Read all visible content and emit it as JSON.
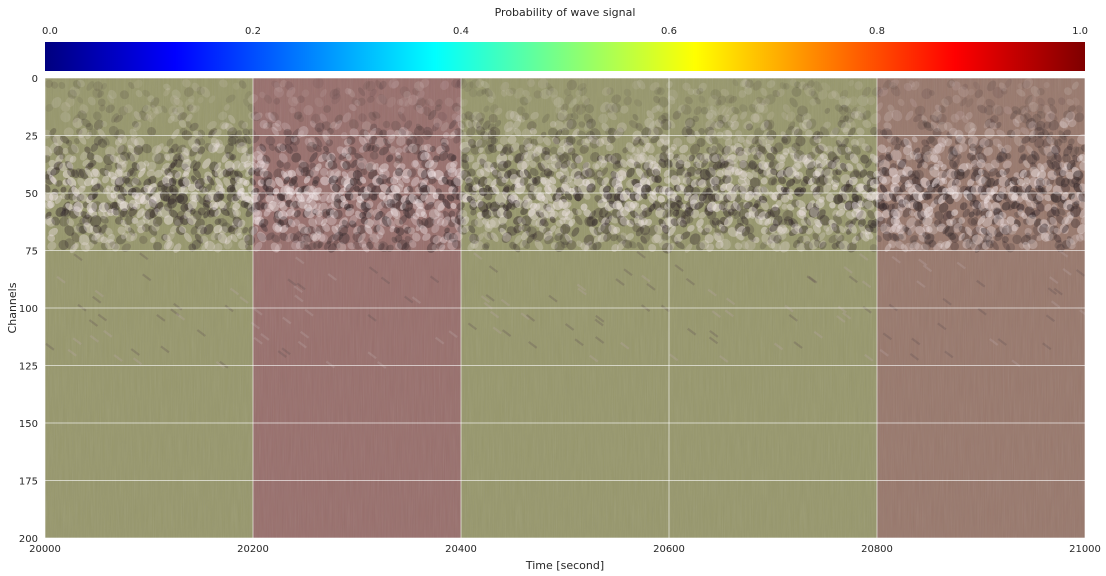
{
  "chart_data": {
    "type": "heatmap",
    "title": "",
    "xlabel": "Time [second]",
    "ylabel": "Channels",
    "xlim": [
      20000,
      21000
    ],
    "ylim": [
      200,
      0
    ],
    "x_ticks": [
      "20000",
      "20200",
      "20400",
      "20600",
      "20800",
      "21000"
    ],
    "y_ticks": [
      "0",
      "25",
      "50",
      "75",
      "100",
      "125",
      "150",
      "175",
      "200"
    ],
    "grid": true,
    "colorbar": {
      "label": "Probability of wave signal",
      "placement": "top",
      "colormap": "jet",
      "range": [
        0,
        1
      ],
      "ticks": [
        "0.0",
        "0.2",
        "0.4",
        "0.6",
        "0.8",
        "1.0"
      ],
      "stops": [
        "#00007f",
        "#0000ff",
        "#007fff",
        "#00ffff",
        "#7fff7f",
        "#ffff00",
        "#ff7f00",
        "#ff0000",
        "#7f0000"
      ]
    },
    "segments": [
      {
        "x_start": 20000,
        "x_end": 20200,
        "probability": 0.62
      },
      {
        "x_start": 20200,
        "x_end": 20400,
        "probability": 0.85
      },
      {
        "x_start": 20400,
        "x_end": 20600,
        "probability": 0.62
      },
      {
        "x_start": 20600,
        "x_end": 20800,
        "probability": 0.62
      },
      {
        "x_start": 20800,
        "x_end": 21000,
        "probability": 0.8
      }
    ],
    "signal_band": {
      "channels": [
        0,
        75
      ],
      "strongest_channel": 50
    }
  }
}
